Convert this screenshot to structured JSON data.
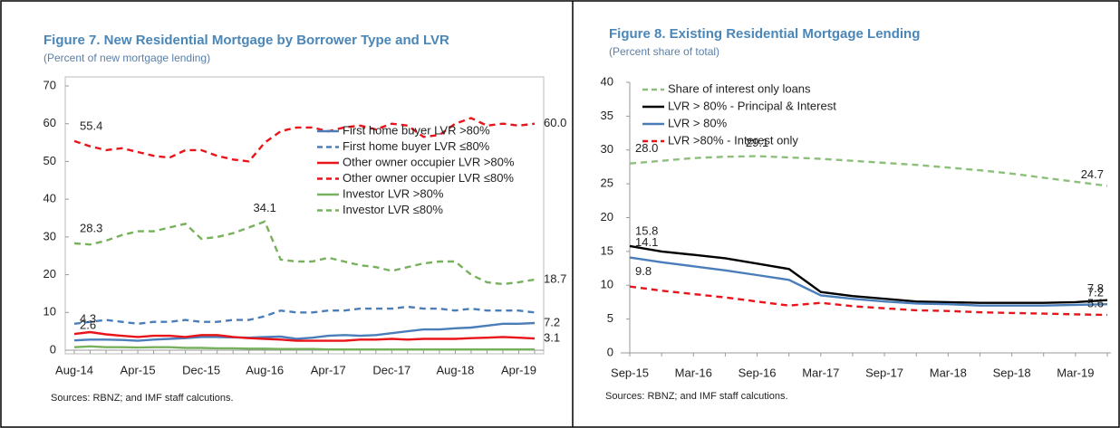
{
  "chart_data": [
    {
      "type": "line",
      "title": "Figure 7. New Residential Mortgage by Borrower Type and LVR",
      "subtitle": "(Percent of new mortgage lending)",
      "source": "Sources: RBNZ; and IMF staff calcutions.",
      "categories": [
        "Aug-14",
        null,
        null,
        null,
        "Apr-15",
        null,
        null,
        null,
        "Dec-15",
        null,
        null,
        null,
        "Aug-16",
        null,
        null,
        null,
        "Apr-17",
        null,
        null,
        null,
        "Dec-17",
        null,
        null,
        null,
        "Aug-18",
        null,
        null,
        null,
        "Apr-19",
        null
      ],
      "ylim": [
        0,
        70
      ],
      "yticks": [
        0,
        10,
        20,
        30,
        40,
        50,
        60,
        70
      ],
      "legend": "right",
      "grid": false,
      "series": [
        {
          "name": "First home buyer LVR >80%",
          "color": "#4a7ebb",
          "dash": false,
          "values": [
            2.6,
            2.8,
            2.8,
            2.7,
            2.5,
            2.8,
            3,
            3.2,
            3.5,
            3.5,
            3.4,
            3.3,
            3.5,
            3.6,
            3,
            3.3,
            3.8,
            4,
            3.8,
            4,
            4.5,
            5,
            5.5,
            5.5,
            5.8,
            6,
            6.5,
            7,
            7,
            7.2
          ],
          "value_labels": [
            "2.6",
            null,
            null,
            null,
            null,
            null,
            null,
            null,
            null,
            null,
            null,
            null,
            null,
            null,
            null,
            null,
            null,
            null,
            null,
            null,
            null,
            null,
            null,
            null,
            null,
            null,
            null,
            null,
            null,
            "7.2"
          ]
        },
        {
          "name": "First home buyer LVR ≤80%",
          "color": "#4a7ebb",
          "dash": true,
          "values": [
            7,
            7.5,
            8,
            7.5,
            7,
            7.5,
            7.5,
            8,
            7.5,
            7.5,
            8,
            8,
            9,
            10.5,
            10,
            10,
            10.5,
            10.5,
            11,
            11,
            11,
            11.5,
            11,
            11,
            10.5,
            11,
            10.5,
            10.5,
            10.5,
            10
          ]
        },
        {
          "name": "Other owner occupier LVR >80%",
          "color": "#e8141a",
          "dash": false,
          "values": [
            4.3,
            4.8,
            4.2,
            3.8,
            3.5,
            3.8,
            3.8,
            3.5,
            4,
            4,
            3.5,
            3.2,
            3,
            2.8,
            2.5,
            2.5,
            2.5,
            2.5,
            2.8,
            2.8,
            3,
            2.8,
            3,
            3,
            3,
            3.2,
            3.3,
            3.5,
            3.3,
            3.1
          ],
          "value_labels": [
            "4.3",
            null,
            null,
            null,
            null,
            null,
            null,
            null,
            null,
            null,
            null,
            null,
            null,
            null,
            null,
            null,
            null,
            null,
            null,
            null,
            null,
            null,
            null,
            null,
            null,
            null,
            null,
            null,
            null,
            "3.1"
          ]
        },
        {
          "name": "Other owner occupier LVR ≤80%",
          "color": "#e8141a",
          "dash": true,
          "values": [
            55.4,
            54,
            53,
            53.5,
            52.5,
            51.5,
            51,
            53,
            53,
            51.5,
            50.5,
            50,
            55,
            58,
            59,
            59,
            58,
            59,
            59.5,
            58.5,
            60,
            59.5,
            56.5,
            57,
            60,
            61.5,
            59.5,
            60,
            59.5,
            60
          ],
          "value_labels": [
            "55.4",
            null,
            null,
            null,
            null,
            null,
            null,
            null,
            null,
            null,
            null,
            null,
            null,
            null,
            null,
            null,
            null,
            null,
            null,
            null,
            null,
            null,
            null,
            null,
            null,
            null,
            null,
            null,
            null,
            "60.0"
          ]
        },
        {
          "name": "Investor LVR >80%",
          "color": "#77b15b",
          "dash": false,
          "values": [
            0.8,
            1,
            0.8,
            0.8,
            0.7,
            0.8,
            0.8,
            0.6,
            0.6,
            0.5,
            0.5,
            0.4,
            0.4,
            0.3,
            0.3,
            0.3,
            0.2,
            0.2,
            0.2,
            0.2,
            0.2,
            0.2,
            0.2,
            0.2,
            0.2,
            0.2,
            0.2,
            0.2,
            0.2,
            0.2
          ]
        },
        {
          "name": "Investor LVR ≤80%",
          "color": "#77b15b",
          "dash": true,
          "values": [
            28.3,
            28,
            29,
            30.5,
            31.5,
            31.5,
            32.5,
            33.5,
            29.5,
            30,
            31,
            32.5,
            34.1,
            24,
            23.5,
            23.5,
            24.5,
            23.5,
            22.5,
            22,
            21,
            22,
            23,
            23.5,
            23.5,
            20,
            18,
            17.5,
            18,
            18.7
          ],
          "value_labels": [
            "28.3",
            null,
            null,
            null,
            null,
            null,
            null,
            null,
            null,
            null,
            null,
            null,
            "34.1",
            null,
            null,
            null,
            null,
            null,
            null,
            null,
            null,
            null,
            null,
            null,
            null,
            null,
            null,
            null,
            null,
            "18.7"
          ]
        }
      ]
    },
    {
      "type": "line",
      "title": "Figure 8. Existing Residential Mortgage Lending",
      "subtitle": "(Percent share of total)",
      "source": "Sources: RBNZ; and IMF staff calcutions.",
      "categories": [
        "Sep-15",
        null,
        "Mar-16",
        null,
        "Sep-16",
        null,
        "Mar-17",
        null,
        "Sep-17",
        null,
        "Mar-18",
        null,
        "Sep-18",
        null,
        "Mar-19",
        null
      ],
      "ylim": [
        0,
        40
      ],
      "yticks": [
        0,
        5,
        10,
        15,
        20,
        25,
        30,
        35,
        40
      ],
      "legend": "upper left",
      "grid": false,
      "series": [
        {
          "name": "Share of interest only loans",
          "color": "#8cc07a",
          "dash": true,
          "values": [
            28.0,
            28.4,
            28.8,
            29.0,
            29.1,
            28.9,
            28.7,
            28.4,
            28.1,
            27.8,
            27.4,
            27.0,
            26.5,
            25.9,
            25.3,
            24.7
          ],
          "value_labels": [
            "28.0",
            null,
            null,
            null,
            "29.1",
            null,
            null,
            null,
            null,
            null,
            null,
            null,
            null,
            null,
            null,
            "24.7"
          ]
        },
        {
          "name": "LVR > 80% - Principal & Interest",
          "color": "#000000",
          "dash": false,
          "values": [
            15.8,
            15.0,
            14.5,
            14.0,
            13.2,
            12.4,
            9.0,
            8.4,
            8.0,
            7.6,
            7.5,
            7.4,
            7.4,
            7.4,
            7.5,
            7.8
          ],
          "value_labels": [
            "15.8",
            null,
            null,
            null,
            null,
            null,
            null,
            null,
            null,
            null,
            null,
            null,
            null,
            null,
            null,
            "7.8"
          ]
        },
        {
          "name": "LVR > 80%",
          "color": "#4a7ebb",
          "dash": false,
          "values": [
            14.1,
            13.4,
            12.8,
            12.2,
            11.5,
            10.8,
            8.5,
            8.0,
            7.6,
            7.3,
            7.2,
            7.0,
            7.0,
            7.0,
            7.1,
            7.2
          ],
          "value_labels": [
            "14.1",
            null,
            null,
            null,
            null,
            null,
            null,
            null,
            null,
            null,
            null,
            null,
            null,
            null,
            null,
            "7.2"
          ]
        },
        {
          "name": "LVR >80% - Interest only",
          "color": "#e8141a",
          "dash": true,
          "values": [
            9.8,
            9.2,
            8.7,
            8.2,
            7.6,
            7.0,
            7.4,
            6.9,
            6.6,
            6.3,
            6.2,
            6.0,
            5.9,
            5.8,
            5.7,
            5.6
          ],
          "value_labels": [
            "9.8",
            null,
            null,
            null,
            null,
            null,
            null,
            null,
            null,
            null,
            null,
            null,
            null,
            null,
            null,
            "5.6"
          ]
        }
      ]
    }
  ]
}
